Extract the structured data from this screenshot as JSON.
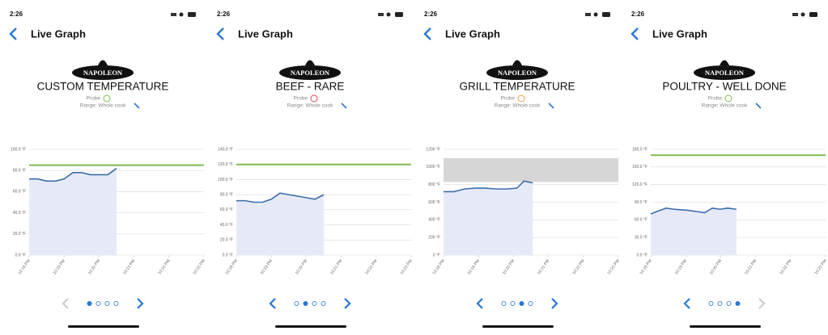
{
  "screens": [
    {
      "time": "2:26",
      "nav_title": "Live Graph",
      "brand": "NAPOLEON",
      "heading": "CUSTOM TEMPERATURE",
      "probe_label": "Probe",
      "probe_color": "#7dbb4f",
      "range_label": "Range: Whole cook",
      "chart": {
        "type": "line",
        "xlim": [
          0,
          5
        ],
        "xticks": [
          {
            "value": 0,
            "label": "10:18 PM"
          },
          {
            "value": 1,
            "label": "10:19 PM"
          },
          {
            "value": 2,
            "label": "10:20 PM"
          },
          {
            "value": 3,
            "label": "10:21 PM"
          },
          {
            "value": 4,
            "label": "10:22 PM"
          },
          {
            "value": 5,
            "label": "10:23 PM"
          }
        ],
        "ylim": [
          0,
          100
        ],
        "yticks": [
          {
            "value": 0,
            "label": "0.0 °F"
          },
          {
            "value": 20,
            "label": "20.0 °F"
          },
          {
            "value": 40,
            "label": "40.0 °F"
          },
          {
            "value": 60,
            "label": "60.0 °F"
          },
          {
            "value": 80,
            "label": "80.0 °F"
          },
          {
            "value": 100,
            "label": "100.0 °F"
          }
        ],
        "target": 85,
        "target_color": "#7dbb4f",
        "color": "#3c6ea8",
        "x": [
          0,
          0.25,
          0.5,
          0.75,
          1,
          1.25,
          1.5,
          1.75,
          2,
          2.25,
          2.5
        ],
        "values": [
          72,
          72,
          70,
          70,
          72,
          78,
          78,
          76,
          76,
          76,
          82
        ]
      }
    },
    {
      "time": "2:26",
      "nav_title": "Live Graph",
      "brand": "NAPOLEON",
      "heading": "BEEF - RARE",
      "probe_label": "Probe",
      "probe_color": "#e0474c",
      "range_label": "Range: Whole cook",
      "chart": {
        "type": "line",
        "xlim": [
          0,
          5
        ],
        "xticks": [
          {
            "value": 0,
            "label": "10:18 PM"
          },
          {
            "value": 1,
            "label": "10:19 PM"
          },
          {
            "value": 2,
            "label": "10:20 PM"
          },
          {
            "value": 3,
            "label": "10:21 PM"
          },
          {
            "value": 4,
            "label": "10:22 PM"
          },
          {
            "value": 5,
            "label": "10:23 PM"
          }
        ],
        "ylim": [
          0,
          140
        ],
        "yticks": [
          {
            "value": 0,
            "label": "0.0 °F"
          },
          {
            "value": 20,
            "label": "20.0 °F"
          },
          {
            "value": 40,
            "label": "40.0 °F"
          },
          {
            "value": 60,
            "label": "60.0 °F"
          },
          {
            "value": 80,
            "label": "80.0 °F"
          },
          {
            "value": 100,
            "label": "100.0 °F"
          },
          {
            "value": 120,
            "label": "120.0 °F"
          },
          {
            "value": 140,
            "label": "140.0 °F"
          }
        ],
        "target": 120,
        "target_color": "#7dbb4f",
        "color": "#3c6ea8",
        "x": [
          0,
          0.25,
          0.5,
          0.75,
          1,
          1.25,
          1.5,
          1.75,
          2,
          2.25,
          2.5
        ],
        "values": [
          72,
          72,
          70,
          70,
          74,
          82,
          80,
          78,
          76,
          74,
          80
        ]
      }
    },
    {
      "time": "2:26",
      "nav_title": "Live Graph",
      "brand": "NAPOLEON",
      "heading": "GRILL TEMPERATURE",
      "probe_label": "Probe",
      "probe_color": "#f0a040",
      "range_label": "Range: Whole cook",
      "chart": {
        "type": "line",
        "xlim": [
          0,
          5
        ],
        "xticks": [
          {
            "value": 0,
            "label": "10:18 PM"
          },
          {
            "value": 1,
            "label": "10:19 PM"
          },
          {
            "value": 2,
            "label": "10:20 PM"
          },
          {
            "value": 3,
            "label": "10:21 PM"
          },
          {
            "value": 4,
            "label": "10:22 PM"
          },
          {
            "value": 5,
            "label": "10:23 PM"
          }
        ],
        "ylim": [
          0,
          1200
        ],
        "yticks": [
          {
            "value": 0,
            "label": "0 °F"
          },
          {
            "value": 200,
            "label": "200 °F"
          },
          {
            "value": 400,
            "label": "400 °F"
          },
          {
            "value": 600,
            "label": "600 °F"
          },
          {
            "value": 800,
            "label": "800 °F"
          },
          {
            "value": 1000,
            "label": "1000 °F"
          },
          {
            "value": 1200,
            "label": "1200 °F"
          }
        ],
        "band": [
          830,
          1100
        ],
        "color": "#3c6ea8",
        "x": [
          0,
          0.3,
          0.6,
          0.9,
          1.2,
          1.5,
          1.8,
          2.1,
          2.3,
          2.55
        ],
        "values": [
          720,
          720,
          750,
          760,
          760,
          750,
          750,
          760,
          840,
          820
        ]
      }
    },
    {
      "time": "2:26",
      "nav_title": "Live Graph",
      "brand": "NAPOLEON",
      "heading": "POULTRY - WELL DONE",
      "probe_label": "Probe",
      "probe_color": "#7dbb4f",
      "range_label": "Range: Whole cook",
      "chart": {
        "type": "line",
        "xlim": [
          0,
          5
        ],
        "xticks": [
          {
            "value": 0,
            "label": "10:18 PM"
          },
          {
            "value": 1,
            "label": "10:19 PM"
          },
          {
            "value": 2,
            "label": "10:20 PM"
          },
          {
            "value": 3,
            "label": "10:21 PM"
          },
          {
            "value": 4,
            "label": "10:22 PM"
          },
          {
            "value": 5,
            "label": "10:23 PM"
          }
        ],
        "ylim": [
          0,
          180
        ],
        "yticks": [
          {
            "value": 0,
            "label": "0.0 °F"
          },
          {
            "value": 30,
            "label": "30.0 °F"
          },
          {
            "value": 60,
            "label": "60.0 °F"
          },
          {
            "value": 90,
            "label": "90.0 °F"
          },
          {
            "value": 120,
            "label": "120.0 °F"
          },
          {
            "value": 150,
            "label": "150.0 °F"
          },
          {
            "value": 180,
            "label": "180.0 °F"
          }
        ],
        "target": 170,
        "target_color": "#7dbb4f",
        "color": "#3c6ea8",
        "x": [
          0,
          0.22,
          0.44,
          0.66,
          0.88,
          1.1,
          1.32,
          1.54,
          1.76,
          1.98,
          2.2,
          2.45
        ],
        "values": [
          70,
          75,
          80,
          78,
          77,
          76,
          74,
          72,
          80,
          78,
          80,
          78
        ]
      }
    }
  ]
}
